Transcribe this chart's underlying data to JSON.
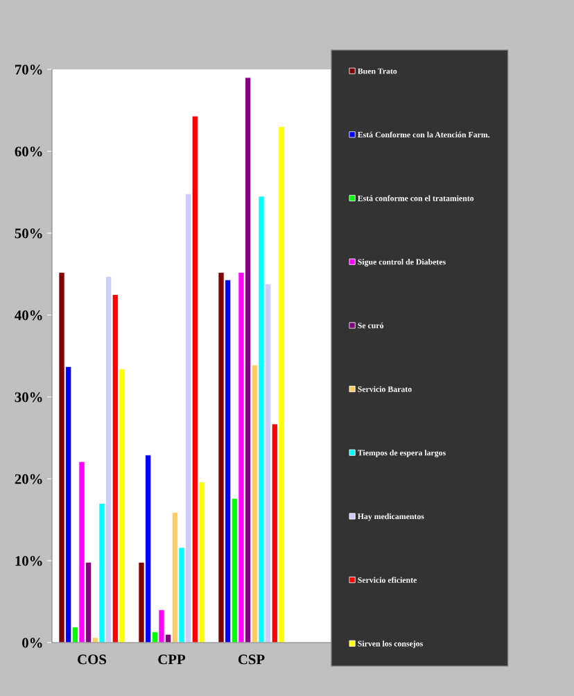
{
  "chart_data": {
    "type": "bar",
    "categories": [
      "COS",
      "CPP",
      "CSP",
      null
    ],
    "series": [
      {
        "name": "Buen Trato",
        "color": "#800000",
        "values": [
          45.2,
          9.8,
          45.2,
          null
        ]
      },
      {
        "name": "Está Conforme con la Atención Farm.",
        "color": "#0000ff",
        "values": [
          33.7,
          22.9,
          44.3,
          null
        ]
      },
      {
        "name": "Está conforme con el tratamiento",
        "color": "#00ff00",
        "values": [
          1.9,
          1.3,
          17.6,
          null
        ]
      },
      {
        "name": "Sigue control de Diabetes",
        "color": "#ff00ff",
        "values": [
          22.1,
          4.0,
          45.2,
          null
        ]
      },
      {
        "name": "Se curó",
        "color": "#800080",
        "values": [
          9.8,
          1.0,
          69.0,
          null
        ]
      },
      {
        "name": "Servicio Barato",
        "color": "#ffcc66",
        "values": [
          0.6,
          15.9,
          33.9,
          null
        ]
      },
      {
        "name": "Tiempos de espera largos",
        "color": "#00ffff",
        "values": [
          17.0,
          11.6,
          54.5,
          null
        ]
      },
      {
        "name": "Hay medicamentos",
        "color": "#ccccff",
        "values": [
          44.7,
          54.8,
          43.8,
          null
        ]
      },
      {
        "name": "Servicio eficiente",
        "color": "#ff0000",
        "values": [
          42.5,
          64.3,
          26.7,
          null
        ]
      },
      {
        "name": "Sirven los consejos",
        "color": "#ffff00",
        "values": [
          33.4,
          19.6,
          63.0,
          null
        ]
      }
    ],
    "ylim": [
      0,
      70
    ],
    "yticks": [
      {
        "value": 0,
        "label": "0%"
      },
      {
        "value": 10,
        "label": "10%"
      },
      {
        "value": 20,
        "label": "20%"
      },
      {
        "value": 30,
        "label": "30%"
      },
      {
        "value": 40,
        "label": "40%"
      },
      {
        "value": 50,
        "label": "50%"
      },
      {
        "value": 60,
        "label": "60%"
      },
      {
        "value": 70,
        "label": "70%"
      }
    ],
    "grid": false,
    "legend": "right"
  }
}
